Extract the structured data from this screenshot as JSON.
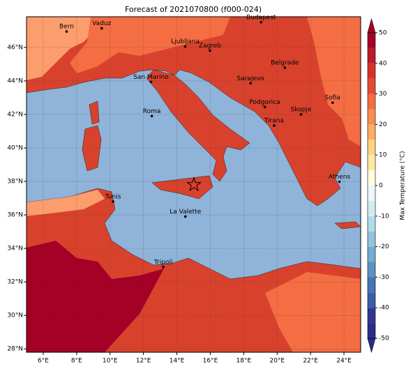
{
  "title": "Forecast of 2021070800 (f000-024)",
  "map": {
    "xlim": [
      5,
      25
    ],
    "ylim": [
      27.8,
      47.83
    ],
    "xticks": [
      {
        "value": 6,
        "label": "6°E"
      },
      {
        "value": 8,
        "label": "8°E"
      },
      {
        "value": 10,
        "label": "10°E"
      },
      {
        "value": 12,
        "label": "12°E"
      },
      {
        "value": 14,
        "label": "14°E"
      },
      {
        "value": 16,
        "label": "16°E"
      },
      {
        "value": 18,
        "label": "18°E"
      },
      {
        "value": 20,
        "label": "20°E"
      },
      {
        "value": 22,
        "label": "22°E"
      },
      {
        "value": 24,
        "label": "24°E"
      }
    ],
    "yticks": [
      {
        "value": 28,
        "label": "28°N"
      },
      {
        "value": 30,
        "label": "30°N"
      },
      {
        "value": 32,
        "label": "32°N"
      },
      {
        "value": 34,
        "label": "34°N"
      },
      {
        "value": 36,
        "label": "36°N"
      },
      {
        "value": 38,
        "label": "38°N"
      },
      {
        "value": 40,
        "label": "40°N"
      },
      {
        "value": 42,
        "label": "42°N"
      },
      {
        "value": 44,
        "label": "44°N"
      },
      {
        "value": 46,
        "label": "46°N"
      }
    ],
    "cities": [
      {
        "name": "Bern",
        "lon": 7.4,
        "lat": 46.95
      },
      {
        "name": "Vaduz",
        "lon": 9.5,
        "lat": 47.14
      },
      {
        "name": "Budapest",
        "lon": 19.04,
        "lat": 47.5
      },
      {
        "name": "Ljubljana",
        "lon": 14.5,
        "lat": 46.05
      },
      {
        "name": "Zagreb",
        "lon": 15.98,
        "lat": 45.81
      },
      {
        "name": "Belgrade",
        "lon": 20.46,
        "lat": 44.79
      },
      {
        "name": "San Marino",
        "lon": 12.45,
        "lat": 43.94
      },
      {
        "name": "Sarajevo",
        "lon": 18.41,
        "lat": 43.86
      },
      {
        "name": "Sofia",
        "lon": 23.32,
        "lat": 42.7
      },
      {
        "name": "Podgorica",
        "lon": 19.26,
        "lat": 42.44
      },
      {
        "name": "Skopje",
        "lon": 21.43,
        "lat": 42.0
      },
      {
        "name": "Roma",
        "lon": 12.5,
        "lat": 41.9
      },
      {
        "name": "Tirana",
        "lon": 19.82,
        "lat": 41.33
      },
      {
        "name": "Athens",
        "lon": 23.73,
        "lat": 37.98
      },
      {
        "name": "Tunis",
        "lon": 10.18,
        "lat": 36.8
      },
      {
        "name": "La Valette",
        "lon": 14.51,
        "lat": 35.9
      },
      {
        "name": "Tripoli",
        "lon": 13.19,
        "lat": 32.89
      }
    ],
    "marker": {
      "lon": 15.02,
      "lat": 37.8
    }
  },
  "colorbar": {
    "label": "Max Temperature (°C)",
    "ticks": [
      -50,
      -40,
      -30,
      -20,
      -10,
      0,
      10,
      20,
      30,
      40,
      50
    ],
    "colors": [
      "#2b2d8c",
      "#313695",
      "#3b5ea8",
      "#4575b4",
      "#5e91c3",
      "#74add1",
      "#93c3dd",
      "#b2dbea",
      "#d2ecf4",
      "#eaf7fb",
      "#fefed8",
      "#fee9a3",
      "#fed283",
      "#fdae61",
      "#f98d52",
      "#f46d43",
      "#e34a33",
      "#d73027",
      "#bd1a2b",
      "#a50026"
    ]
  }
}
